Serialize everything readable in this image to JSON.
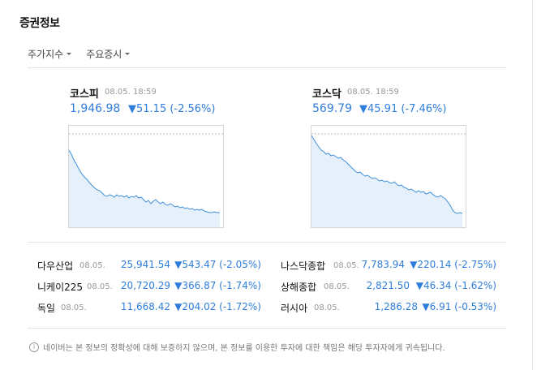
{
  "title": "증권정보",
  "tabs": [
    {
      "label": "주가지수"
    },
    {
      "label": "주요증시"
    }
  ],
  "indices": [
    {
      "name": "코스피",
      "time": "08.05. 18:59",
      "value": "1,946.98",
      "change": "▼51.15 (-2.56%)"
    },
    {
      "name": "코스닥",
      "time": "08.05. 18:59",
      "value": "569.79",
      "change": "▼45.91 (-7.46%)"
    }
  ],
  "markets": [
    {
      "name": "다우산업",
      "date": "08.05.",
      "value": "25,941.54",
      "change": "▼543.47 (-2.05%)"
    },
    {
      "name": "나스닥종합",
      "date": "08.05.",
      "value": "7,783.94",
      "change": "▼220.14 (-2.75%)"
    },
    {
      "name": "니케이225",
      "date": "08.05.",
      "value": "20,720.29",
      "change": "▼366.87 (-1.74%)"
    },
    {
      "name": "상해종합",
      "date": "08.05.",
      "value": "2,821.50",
      "change": "▼46.34 (-1.62%)"
    },
    {
      "name": "독일",
      "date": "08.05.",
      "value": "11,668.42",
      "change": "▼204.02 (-1.72%)"
    },
    {
      "name": "러시아",
      "date": "08.05.",
      "value": "1,286.28",
      "change": "▼6.91 (-0.53%)"
    }
  ],
  "notice": "네이버는 본 정보의 정확성에 대해 보증하지 않으며, 본 정보를 이용한 투자에 대한 책임은 해당 투자자에게 귀속됩니다.",
  "colors": {
    "down": "#2f7ddb",
    "chart_fill": "#e6f0fb"
  }
}
